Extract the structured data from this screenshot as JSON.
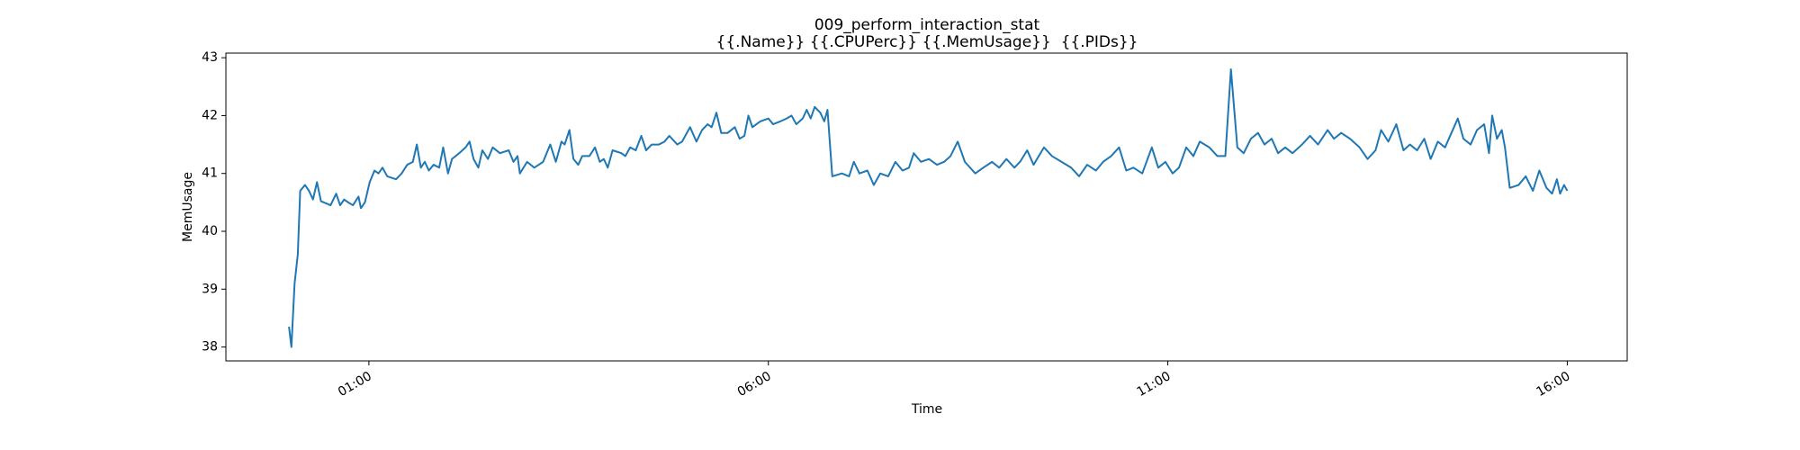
{
  "chart_data": {
    "type": "line",
    "title": "009_perform_interaction_stat",
    "subtitle": "{{.Name}} {{.CPUPerc}} {{.MemUsage}}  {{.PIDs}}",
    "x_label": "Time",
    "y_label": "MemUsage",
    "color": "#1f77b4",
    "grid": false,
    "xlim": [
      -0.79,
      16.75
    ],
    "xticks": [
      {
        "value": 1,
        "label": "01:00"
      },
      {
        "value": 6,
        "label": "06:00"
      },
      {
        "value": 11,
        "label": "11:00"
      },
      {
        "value": 16,
        "label": "16:00"
      }
    ],
    "ylim": [
      37.76,
      43.08
    ],
    "yticks": [
      38,
      39,
      40,
      41,
      42,
      43
    ],
    "x": [
      0.0,
      0.03,
      0.07,
      0.11,
      0.14,
      0.2,
      0.25,
      0.3,
      0.35,
      0.4,
      0.47,
      0.52,
      0.59,
      0.64,
      0.69,
      0.74,
      0.8,
      0.87,
      0.9,
      0.95,
      1.01,
      1.07,
      1.12,
      1.17,
      1.23,
      1.34,
      1.41,
      1.48,
      1.55,
      1.6,
      1.65,
      1.7,
      1.75,
      1.81,
      1.88,
      1.93,
      1.99,
      2.04,
      2.13,
      2.21,
      2.26,
      2.31,
      2.37,
      2.42,
      2.49,
      2.55,
      2.64,
      2.75,
      2.81,
      2.86,
      2.89,
      2.98,
      3.07,
      3.18,
      3.27,
      3.34,
      3.41,
      3.45,
      3.51,
      3.56,
      3.62,
      3.67,
      3.76,
      3.83,
      3.89,
      3.94,
      3.99,
      4.05,
      4.16,
      4.21,
      4.27,
      4.34,
      4.41,
      4.47,
      4.54,
      4.63,
      4.7,
      4.76,
      4.86,
      4.92,
      5.02,
      5.1,
      5.17,
      5.24,
      5.29,
      5.35,
      5.41,
      5.49,
      5.58,
      5.64,
      5.7,
      5.75,
      5.8,
      5.9,
      6.0,
      6.06,
      6.15,
      6.23,
      6.29,
      6.35,
      6.43,
      6.48,
      6.53,
      6.58,
      6.65,
      6.7,
      6.74,
      6.8,
      6.92,
      7.01,
      7.07,
      7.14,
      7.24,
      7.32,
      7.4,
      7.5,
      7.59,
      7.68,
      7.76,
      7.82,
      7.91,
      8.01,
      8.11,
      8.2,
      8.28,
      8.37,
      8.46,
      8.59,
      8.69,
      8.8,
      8.89,
      8.98,
      9.08,
      9.15,
      9.24,
      9.32,
      9.45,
      9.55,
      9.67,
      9.79,
      9.89,
      9.99,
      10.1,
      10.19,
      10.29,
      10.39,
      10.48,
      10.57,
      10.68,
      10.8,
      10.88,
      10.97,
      11.06,
      11.14,
      11.23,
      11.32,
      11.4,
      11.52,
      11.62,
      11.72,
      11.79,
      11.87,
      11.95,
      12.04,
      12.13,
      12.21,
      12.3,
      12.38,
      12.47,
      12.56,
      12.68,
      12.78,
      12.88,
      13.0,
      13.08,
      13.17,
      13.28,
      13.4,
      13.5,
      13.6,
      13.67,
      13.76,
      13.86,
      13.95,
      14.03,
      14.12,
      14.21,
      14.29,
      14.38,
      14.47,
      14.55,
      14.63,
      14.7,
      14.79,
      14.87,
      14.96,
      15.02,
      15.06,
      15.12,
      15.18,
      15.22,
      15.28,
      15.39,
      15.48,
      15.57,
      15.65,
      15.74,
      15.81,
      15.87,
      15.91,
      15.96,
      16.0
    ],
    "values": [
      38.35,
      38.0,
      39.1,
      39.6,
      40.7,
      40.8,
      40.7,
      40.55,
      40.85,
      40.52,
      40.48,
      40.45,
      40.65,
      40.45,
      40.55,
      40.5,
      40.45,
      40.6,
      40.4,
      40.5,
      40.85,
      41.05,
      41.0,
      41.1,
      40.95,
      40.9,
      41.0,
      41.15,
      41.2,
      41.5,
      41.1,
      41.2,
      41.05,
      41.15,
      41.1,
      41.45,
      41.0,
      41.25,
      41.35,
      41.45,
      41.55,
      41.25,
      41.1,
      41.4,
      41.25,
      41.45,
      41.35,
      41.4,
      41.2,
      41.3,
      41.0,
      41.2,
      41.1,
      41.2,
      41.5,
      41.2,
      41.55,
      41.5,
      41.75,
      41.25,
      41.15,
      41.3,
      41.3,
      41.45,
      41.2,
      41.25,
      41.1,
      41.4,
      41.35,
      41.3,
      41.45,
      41.4,
      41.65,
      41.4,
      41.5,
      41.5,
      41.55,
      41.65,
      41.5,
      41.55,
      41.8,
      41.55,
      41.75,
      41.85,
      41.8,
      42.05,
      41.7,
      41.7,
      41.8,
      41.6,
      41.65,
      42.0,
      41.8,
      41.9,
      41.95,
      41.85,
      41.9,
      41.95,
      42.0,
      41.85,
      41.95,
      42.1,
      41.95,
      42.15,
      42.05,
      41.9,
      42.1,
      40.95,
      41.0,
      40.95,
      41.2,
      41.0,
      41.05,
      40.8,
      41.0,
      40.95,
      41.2,
      41.05,
      41.1,
      41.35,
      41.2,
      41.25,
      41.15,
      41.2,
      41.3,
      41.55,
      41.2,
      41.0,
      41.1,
      41.2,
      41.1,
      41.25,
      41.1,
      41.2,
      41.4,
      41.15,
      41.45,
      41.3,
      41.2,
      41.1,
      40.95,
      41.15,
      41.05,
      41.2,
      41.3,
      41.45,
      41.05,
      41.1,
      41.0,
      41.45,
      41.1,
      41.2,
      41.0,
      41.1,
      41.45,
      41.3,
      41.55,
      41.45,
      41.3,
      41.3,
      42.8,
      41.45,
      41.35,
      41.6,
      41.7,
      41.5,
      41.6,
      41.35,
      41.45,
      41.35,
      41.5,
      41.65,
      41.5,
      41.75,
      41.6,
      41.7,
      41.6,
      41.45,
      41.25,
      41.4,
      41.75,
      41.55,
      41.85,
      41.4,
      41.5,
      41.4,
      41.6,
      41.25,
      41.55,
      41.45,
      41.7,
      41.95,
      41.6,
      41.5,
      41.75,
      41.85,
      41.35,
      42.0,
      41.6,
      41.75,
      41.45,
      40.75,
      40.8,
      40.95,
      40.7,
      41.05,
      40.75,
      40.65,
      40.9,
      40.65,
      40.8,
      40.7
    ]
  }
}
